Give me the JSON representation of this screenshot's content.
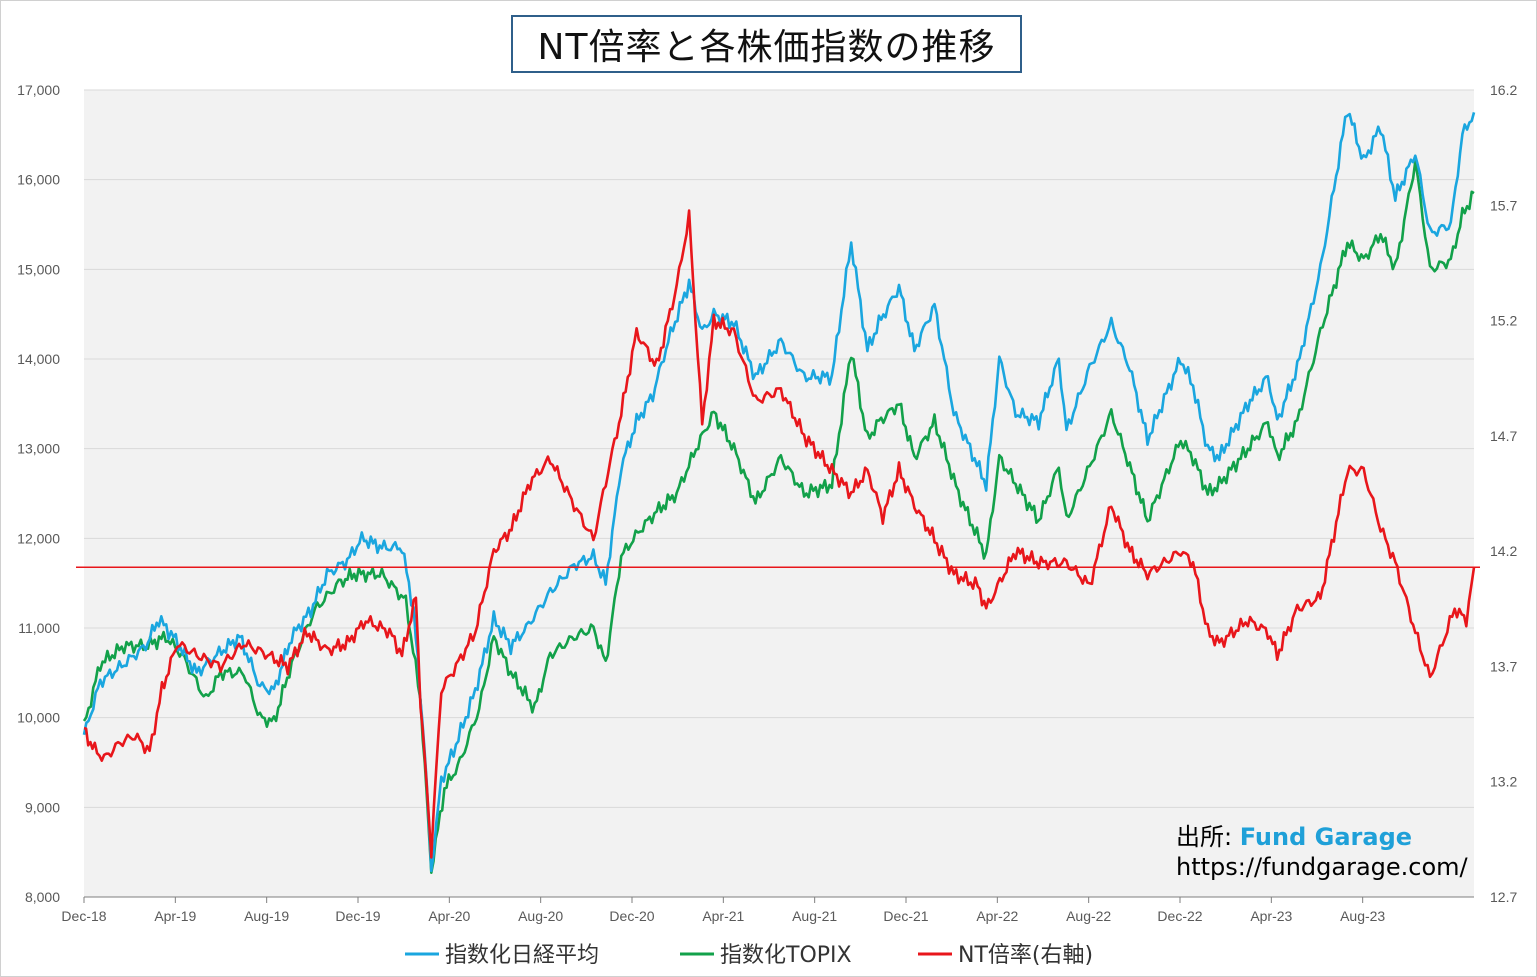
{
  "title": "NT倍率と各株価指数の推移",
  "source": {
    "label": "出所",
    "sep": ":",
    "brand": "Fund Garage",
    "url": "https://fundgarage.com/"
  },
  "colors": {
    "nikkei": "#1aa6df",
    "topix": "#12a14a",
    "nt": "#e8161b",
    "ref": "#e8161b",
    "plot_bg": "#f2f2f2",
    "grid": "#d9d9d9"
  },
  "chart_data": {
    "type": "line",
    "title": "NT倍率と各株価指数の推移",
    "x_ticks": [
      "Dec-18",
      "Apr-19",
      "Aug-19",
      "Dec-19",
      "Apr-20",
      "Aug-20",
      "Dec-20",
      "Apr-21",
      "Aug-21",
      "Dec-21",
      "Apr-22",
      "Aug-22",
      "Dec-22",
      "Apr-23",
      "Aug-23"
    ],
    "x_range": [
      "2018-12-25",
      "2023-11-30"
    ],
    "y_left": {
      "min": 8000,
      "max": 17000,
      "ticks": [
        "8,000",
        "9,000",
        "10,000",
        "11,000",
        "12,000",
        "13,000",
        "14,000",
        "15,000",
        "16,000",
        "17,000"
      ]
    },
    "y_right": {
      "min": 12.7,
      "max": 16.2,
      "ticks": [
        "12.7",
        "13.2",
        "13.7",
        "14.2",
        "14.7",
        "15.2",
        "15.7",
        "16.2"
      ]
    },
    "grid": true,
    "legend_position": "bottom",
    "reference_line": {
      "axis": "right",
      "value": 14.13
    },
    "series": [
      {
        "name": "指数化日経平均",
        "axis": "left",
        "color": "#1aa6df",
        "points": [
          [
            "2018-12-25",
            9800
          ],
          [
            "2019-01-15",
            10400
          ],
          [
            "2019-02-15",
            10600
          ],
          [
            "2019-03-15",
            10800
          ],
          [
            "2019-04-01",
            11100
          ],
          [
            "2019-04-20",
            10900
          ],
          [
            "2019-05-20",
            10500
          ],
          [
            "2019-06-15",
            10700
          ],
          [
            "2019-07-15",
            10900
          ],
          [
            "2019-08-10",
            10350
          ],
          [
            "2019-08-28",
            10300
          ],
          [
            "2019-09-20",
            10900
          ],
          [
            "2019-10-15",
            11200
          ],
          [
            "2019-11-05",
            11600
          ],
          [
            "2019-12-01",
            11750
          ],
          [
            "2019-12-20",
            12000
          ],
          [
            "2020-01-15",
            11900
          ],
          [
            "2020-02-10",
            11900
          ],
          [
            "2020-02-25",
            11200
          ],
          [
            "2020-03-10",
            9700
          ],
          [
            "2020-03-19",
            8300
          ],
          [
            "2020-04-01",
            9300
          ],
          [
            "2020-04-20",
            9700
          ],
          [
            "2020-05-15",
            10300
          ],
          [
            "2020-06-08",
            11100
          ],
          [
            "2020-06-30",
            10800
          ],
          [
            "2020-07-20",
            11000
          ],
          [
            "2020-08-20",
            11400
          ],
          [
            "2020-09-20",
            11700
          ],
          [
            "2020-10-15",
            11800
          ],
          [
            "2020-10-31",
            11500
          ],
          [
            "2020-11-20",
            12800
          ],
          [
            "2020-12-10",
            13300
          ],
          [
            "2020-12-31",
            13600
          ],
          [
            "2021-01-20",
            14200
          ],
          [
            "2021-02-16",
            14850
          ],
          [
            "2021-03-05",
            14300
          ],
          [
            "2021-03-20",
            14500
          ],
          [
            "2021-04-15",
            14400
          ],
          [
            "2021-05-13",
            13800
          ],
          [
            "2021-06-15",
            14200
          ],
          [
            "2021-07-15",
            13800
          ],
          [
            "2021-08-20",
            13800
          ],
          [
            "2021-09-14",
            15300
          ],
          [
            "2021-10-05",
            14100
          ],
          [
            "2021-10-20",
            14400
          ],
          [
            "2021-11-15",
            14800
          ],
          [
            "2021-12-05",
            14100
          ],
          [
            "2021-12-31",
            14600
          ],
          [
            "2022-01-25",
            13400
          ],
          [
            "2022-03-08",
            12600
          ],
          [
            "2022-03-25",
            14000
          ],
          [
            "2022-04-15",
            13400
          ],
          [
            "2022-05-15",
            13300
          ],
          [
            "2022-06-10",
            14000
          ],
          [
            "2022-06-20",
            13200
          ],
          [
            "2022-07-20",
            13900
          ],
          [
            "2022-08-17",
            14400
          ],
          [
            "2022-09-10",
            13900
          ],
          [
            "2022-10-03",
            13100
          ],
          [
            "2022-11-15",
            14000
          ],
          [
            "2022-12-01",
            13700
          ],
          [
            "2022-12-20",
            13000
          ],
          [
            "2023-01-04",
            12900
          ],
          [
            "2023-02-10",
            13500
          ],
          [
            "2023-03-08",
            13800
          ],
          [
            "2023-03-20",
            13300
          ],
          [
            "2023-04-15",
            13900
          ],
          [
            "2023-05-15",
            15000
          ],
          [
            "2023-06-19",
            16800
          ],
          [
            "2023-07-10",
            16200
          ],
          [
            "2023-08-01",
            16600
          ],
          [
            "2023-08-20",
            15800
          ],
          [
            "2023-09-15",
            16300
          ],
          [
            "2023-10-04",
            15400
          ],
          [
            "2023-10-31",
            15500
          ],
          [
            "2023-11-15",
            16500
          ],
          [
            "2023-11-30",
            16750
          ]
        ]
      },
      {
        "name": "指数化TOPIX",
        "axis": "left",
        "color": "#12a14a",
        "points": [
          [
            "2018-12-25",
            9900
          ],
          [
            "2019-01-15",
            10600
          ],
          [
            "2019-02-15",
            10800
          ],
          [
            "2019-03-15",
            10800
          ],
          [
            "2019-04-10",
            10900
          ],
          [
            "2019-05-01",
            10700
          ],
          [
            "2019-06-01",
            10200
          ],
          [
            "2019-06-20",
            10500
          ],
          [
            "2019-07-20",
            10500
          ],
          [
            "2019-08-10",
            10000
          ],
          [
            "2019-08-28",
            9950
          ],
          [
            "2019-09-20",
            10600
          ],
          [
            "2019-10-20",
            11200
          ],
          [
            "2019-11-20",
            11500
          ],
          [
            "2019-12-10",
            11600
          ],
          [
            "2020-01-15",
            11600
          ],
          [
            "2020-02-15",
            11300
          ],
          [
            "2020-03-05",
            10200
          ],
          [
            "2020-03-19",
            8300
          ],
          [
            "2020-04-05",
            9200
          ],
          [
            "2020-04-25",
            9500
          ],
          [
            "2020-05-20",
            10100
          ],
          [
            "2020-06-08",
            10900
          ],
          [
            "2020-06-30",
            10500
          ],
          [
            "2020-07-31",
            10100
          ],
          [
            "2020-08-20",
            10700
          ],
          [
            "2020-09-20",
            10900
          ],
          [
            "2020-10-15",
            11000
          ],
          [
            "2020-10-31",
            10600
          ],
          [
            "2020-11-20",
            11800
          ],
          [
            "2020-12-15",
            12100
          ],
          [
            "2021-01-05",
            12300
          ],
          [
            "2021-01-31",
            12500
          ],
          [
            "2021-02-25",
            13000
          ],
          [
            "2021-03-20",
            13400
          ],
          [
            "2021-04-15",
            13000
          ],
          [
            "2021-05-13",
            12400
          ],
          [
            "2021-06-15",
            12900
          ],
          [
            "2021-07-15",
            12500
          ],
          [
            "2021-08-20",
            12600
          ],
          [
            "2021-09-14",
            14100
          ],
          [
            "2021-10-05",
            13100
          ],
          [
            "2021-10-20",
            13300
          ],
          [
            "2021-11-15",
            13500
          ],
          [
            "2021-12-05",
            12900
          ],
          [
            "2021-12-31",
            13300
          ],
          [
            "2022-01-31",
            12500
          ],
          [
            "2022-03-08",
            11800
          ],
          [
            "2022-03-25",
            12900
          ],
          [
            "2022-05-15",
            12200
          ],
          [
            "2022-06-10",
            12800
          ],
          [
            "2022-06-20",
            12200
          ],
          [
            "2022-07-20",
            12800
          ],
          [
            "2022-08-17",
            13400
          ],
          [
            "2022-09-10",
            12800
          ],
          [
            "2022-10-03",
            12200
          ],
          [
            "2022-11-15",
            13100
          ],
          [
            "2022-12-01",
            12900
          ],
          [
            "2022-12-20",
            12500
          ],
          [
            "2023-01-04",
            12600
          ],
          [
            "2023-02-10",
            13000
          ],
          [
            "2023-03-08",
            13300
          ],
          [
            "2023-03-20",
            12900
          ],
          [
            "2023-04-15",
            13300
          ],
          [
            "2023-05-15",
            14300
          ],
          [
            "2023-06-19",
            15300
          ],
          [
            "2023-07-10",
            15100
          ],
          [
            "2023-08-01",
            15400
          ],
          [
            "2023-08-20",
            15000
          ],
          [
            "2023-09-15",
            16200
          ],
          [
            "2023-10-04",
            15000
          ],
          [
            "2023-10-31",
            15100
          ],
          [
            "2023-11-15",
            15600
          ],
          [
            "2023-11-30",
            15850
          ]
        ]
      },
      {
        "name": "NT倍率(右軸)",
        "axis": "right",
        "color": "#e8161b",
        "points": [
          [
            "2018-12-25",
            13.43
          ],
          [
            "2019-01-05",
            13.35
          ],
          [
            "2019-01-20",
            13.3
          ],
          [
            "2019-02-10",
            13.37
          ],
          [
            "2019-03-01",
            13.4
          ],
          [
            "2019-03-20",
            13.33
          ],
          [
            "2019-04-05",
            13.6
          ],
          [
            "2019-04-25",
            13.8
          ],
          [
            "2019-05-20",
            13.75
          ],
          [
            "2019-06-20",
            13.7
          ],
          [
            "2019-07-20",
            13.8
          ],
          [
            "2019-08-20",
            13.75
          ],
          [
            "2019-09-15",
            13.7
          ],
          [
            "2019-10-10",
            13.85
          ],
          [
            "2019-11-05",
            13.77
          ],
          [
            "2019-12-01",
            13.8
          ],
          [
            "2019-12-25",
            13.9
          ],
          [
            "2020-01-25",
            13.85
          ],
          [
            "2020-02-10",
            13.75
          ],
          [
            "2020-02-28",
            14.0
          ],
          [
            "2020-03-05",
            13.55
          ],
          [
            "2020-03-19",
            12.9
          ],
          [
            "2020-04-01",
            13.6
          ],
          [
            "2020-04-20",
            13.7
          ],
          [
            "2020-05-15",
            13.85
          ],
          [
            "2020-06-08",
            14.2
          ],
          [
            "2020-07-01",
            14.3
          ],
          [
            "2020-07-25",
            14.5
          ],
          [
            "2020-08-20",
            14.6
          ],
          [
            "2020-09-20",
            14.4
          ],
          [
            "2020-10-15",
            14.25
          ],
          [
            "2020-10-31",
            14.5
          ],
          [
            "2020-11-20",
            14.8
          ],
          [
            "2020-12-10",
            15.15
          ],
          [
            "2021-01-05",
            15.0
          ],
          [
            "2021-01-31",
            15.35
          ],
          [
            "2021-02-16",
            15.65
          ],
          [
            "2021-03-05",
            14.75
          ],
          [
            "2021-03-20",
            15.2
          ],
          [
            "2021-04-15",
            15.15
          ],
          [
            "2021-05-13",
            14.85
          ],
          [
            "2021-06-15",
            14.9
          ],
          [
            "2021-07-15",
            14.7
          ],
          [
            "2021-08-20",
            14.55
          ],
          [
            "2021-09-14",
            14.45
          ],
          [
            "2021-10-05",
            14.55
          ],
          [
            "2021-10-25",
            14.35
          ],
          [
            "2021-11-15",
            14.55
          ],
          [
            "2021-12-05",
            14.4
          ],
          [
            "2021-12-31",
            14.25
          ],
          [
            "2022-01-25",
            14.1
          ],
          [
            "2022-02-25",
            14.05
          ],
          [
            "2022-03-08",
            13.95
          ],
          [
            "2022-04-15",
            14.2
          ],
          [
            "2022-05-15",
            14.15
          ],
          [
            "2022-06-20",
            14.15
          ],
          [
            "2022-07-20",
            14.05
          ],
          [
            "2022-08-17",
            14.4
          ],
          [
            "2022-09-10",
            14.2
          ],
          [
            "2022-10-03",
            14.1
          ],
          [
            "2022-11-15",
            14.2
          ],
          [
            "2022-12-01",
            14.15
          ],
          [
            "2022-12-20",
            13.85
          ],
          [
            "2023-01-04",
            13.8
          ],
          [
            "2023-02-10",
            13.9
          ],
          [
            "2023-03-08",
            13.85
          ],
          [
            "2023-03-20",
            13.75
          ],
          [
            "2023-04-15",
            13.95
          ],
          [
            "2023-05-15",
            14.0
          ],
          [
            "2023-06-19",
            14.55
          ],
          [
            "2023-07-10",
            14.55
          ],
          [
            "2023-08-01",
            14.3
          ],
          [
            "2023-08-20",
            14.15
          ],
          [
            "2023-09-15",
            13.85
          ],
          [
            "2023-10-04",
            13.65
          ],
          [
            "2023-10-20",
            13.8
          ],
          [
            "2023-11-05",
            13.95
          ],
          [
            "2023-11-20",
            13.9
          ],
          [
            "2023-11-30",
            14.13
          ]
        ]
      }
    ]
  }
}
